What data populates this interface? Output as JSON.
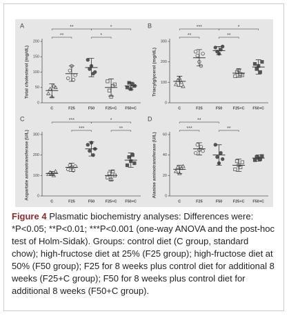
{
  "chart_data": [
    {
      "type": "scatter",
      "panel": "A",
      "ylabel": "Total cholesterol (mg/dL)",
      "categories": [
        "C",
        "F25",
        "F50",
        "F25+C",
        "F50+C"
      ],
      "markers": [
        "triangle-open",
        "circle-open",
        "circle-filled",
        "square-open",
        "square-filled"
      ],
      "values": [
        40,
        95,
        115,
        50,
        55
      ],
      "errors": [
        22,
        25,
        30,
        28,
        12
      ],
      "points": [
        [
          30,
          45,
          20,
          55,
          50
        ],
        [
          80,
          105,
          120,
          75,
          90
        ],
        [
          140,
          110,
          120,
          95,
          100
        ],
        [
          70,
          40,
          20,
          55,
          60
        ],
        [
          50,
          65,
          45,
          60,
          55
        ]
      ],
      "ylim": [
        0,
        200
      ],
      "yticks": [
        0,
        50,
        100,
        150,
        200
      ],
      "brackets": [
        {
          "from": 0,
          "to": 2,
          "label": "**"
        },
        {
          "from": 2,
          "to": 4,
          "label": "*"
        },
        {
          "from": 0,
          "to": 1,
          "label": "**"
        },
        {
          "from": 2,
          "to": 3,
          "label": "*"
        }
      ]
    },
    {
      "type": "scatter",
      "panel": "B",
      "ylabel": "Triacylglycerol (mg/dL)",
      "categories": [
        "C",
        "F25",
        "F50",
        "F25+C",
        "F50+C"
      ],
      "markers": [
        "triangle-open",
        "circle-open",
        "circle-filled",
        "square-open",
        "square-filled"
      ],
      "values": [
        105,
        220,
        255,
        145,
        175
      ],
      "errors": [
        25,
        40,
        20,
        20,
        35
      ],
      "points": [
        [
          90,
          110,
          120,
          100,
          80
        ],
        [
          250,
          230,
          200,
          180,
          240
        ],
        [
          270,
          250,
          240,
          260,
          275
        ],
        [
          130,
          150,
          160,
          140,
          135
        ],
        [
          190,
          165,
          180,
          150,
          200
        ]
      ],
      "ylim": [
        0,
        300
      ],
      "yticks": [
        0,
        100,
        200,
        300
      ],
      "brackets": [
        {
          "from": 0,
          "to": 2,
          "label": "***"
        },
        {
          "from": 2,
          "to": 4,
          "label": "*"
        },
        {
          "from": 0,
          "to": 1,
          "label": "**"
        },
        {
          "from": 2,
          "to": 3,
          "label": "**"
        }
      ]
    },
    {
      "type": "scatter",
      "panel": "C",
      "ylabel": "Aspartate aminotransferase (U/L)",
      "categories": [
        "C",
        "F25",
        "F50",
        "F25+C",
        "F50+C"
      ],
      "markers": [
        "triangle-open",
        "circle-open",
        "circle-filled",
        "square-open",
        "square-filled"
      ],
      "values": [
        110,
        140,
        230,
        100,
        175
      ],
      "errors": [
        10,
        20,
        35,
        25,
        35
      ],
      "points": [
        [
          105,
          115,
          110,
          100,
          120
        ],
        [
          130,
          150,
          140,
          125,
          145
        ],
        [
          250,
          220,
          260,
          200,
          230
        ],
        [
          90,
          110,
          80,
          120,
          100
        ],
        [
          150,
          190,
          170,
          200,
          160
        ]
      ],
      "ylim": [
        0,
        300
      ],
      "yticks": [
        0,
        100,
        200,
        300
      ],
      "brackets": [
        {
          "from": 0,
          "to": 2,
          "label": "***"
        },
        {
          "from": 2,
          "to": 4,
          "label": "*"
        },
        {
          "from": 1,
          "to": 2,
          "label": "***"
        },
        {
          "from": 3,
          "to": 4,
          "label": "**"
        }
      ]
    },
    {
      "type": "scatter",
      "panel": "D",
      "ylabel": "Alanine aminotransferase (U/L)",
      "categories": [
        "C",
        "F25",
        "F50",
        "F25+C",
        "F50+C"
      ],
      "markers": [
        "triangle-open",
        "circle-open",
        "circle-filled",
        "square-open",
        "square-filled"
      ],
      "values": [
        26,
        46,
        40,
        30,
        37
      ],
      "errors": [
        4,
        6,
        10,
        6,
        3
      ],
      "points": [
        [
          24,
          28,
          22,
          27,
          29
        ],
        [
          42,
          50,
          45,
          48,
          44
        ],
        [
          50,
          38,
          32,
          42,
          36
        ],
        [
          26,
          34,
          30,
          28,
          33
        ],
        [
          35,
          38,
          37,
          36,
          39
        ]
      ],
      "ylim": [
        0,
        60
      ],
      "yticks": [
        0,
        20,
        40,
        60
      ],
      "brackets": [
        {
          "from": 0,
          "to": 2,
          "label": "**"
        },
        {
          "from": 0,
          "to": 1,
          "label": "***"
        },
        {
          "from": 2,
          "to": 3,
          "label": "**"
        }
      ]
    }
  ],
  "caption": {
    "label": "Figure 4",
    "text": "Plasmatic biochemistry analyses: Differences were: *P<0.05; **P<0.01; ***P<0.001 (one-way ANOVA and the post-hoc test of Holm-Sidak). Groups: control diet (C group, standard chow); high-fructose diet at 25% (F25 group); high-fructose diet at 50% (F50 group); F25 for 8 weeks plus control diet for additional 8 weeks (F25+C group); F50 for 8 weeks plus control diet for additional 8 weeks (F50+C group)."
  }
}
